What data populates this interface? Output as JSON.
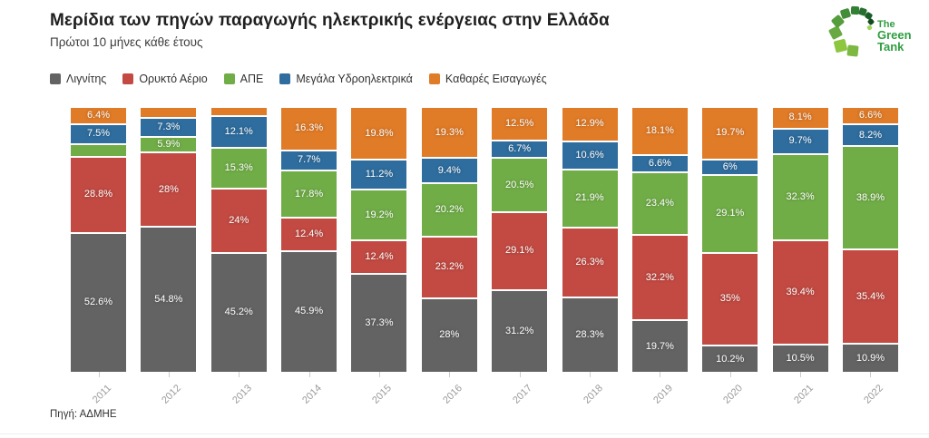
{
  "header": {
    "title": "Μερίδια των πηγών παραγωγής ηλεκτρικής ενέργειας στην Ελλάδα",
    "subtitle": "Πρώτοι 10 μήνες κάθε έτους"
  },
  "logo": {
    "line1": "The",
    "line2": "Green",
    "line3": "Tank",
    "text_color": "#2f9e41",
    "square_colors": [
      "#8dc63f",
      "#7cb842",
      "#68aa41",
      "#559c3d",
      "#428e38",
      "#337f33",
      "#25702e",
      "#1a5c26",
      "#124a1f",
      "#9ed65c"
    ]
  },
  "footer": {
    "source": "Πηγή: ΑΔΜΗΕ"
  },
  "chart_data": {
    "type": "bar",
    "stacked": true,
    "percent": true,
    "title": "Μερίδια των πηγών παραγωγής ηλεκτρικής ενέργειας στην Ελλάδα",
    "subtitle": "Πρώτοι 10 μήνες κάθε έτους",
    "xlabel": "",
    "ylabel": "",
    "ylim": [
      0,
      100
    ],
    "grid": false,
    "legend_position": "top",
    "categories": [
      "2011",
      "2012",
      "2013",
      "2014",
      "2015",
      "2016",
      "2017",
      "2018",
      "2019",
      "2020",
      "2021",
      "2022"
    ],
    "series": [
      {
        "name": "Λιγνίτης",
        "color": "#636363",
        "values": [
          52.6,
          54.8,
          45.2,
          45.9,
          37.3,
          28,
          31.2,
          28.3,
          19.7,
          10.2,
          10.5,
          10.9
        ],
        "labels": [
          "52.6%",
          "54.8%",
          "45.2%",
          "45.9%",
          "37.3%",
          "28%",
          "31.2%",
          "28.3%",
          "19.7%",
          "10.2%",
          "10.5%",
          "10.9%"
        ]
      },
      {
        "name": "Ορυκτό Αέριο",
        "color": "#c24a42",
        "values": [
          28.8,
          28,
          24,
          12.4,
          12.4,
          23.2,
          29.1,
          26.3,
          32.2,
          35,
          39.4,
          35.4
        ],
        "labels": [
          "28.8%",
          "28%",
          "24%",
          "12.4%",
          "12.4%",
          "23.2%",
          "29.1%",
          "26.3%",
          "32.2%",
          "35%",
          "39.4%",
          "35.4%"
        ]
      },
      {
        "name": "ΑΠΕ",
        "color": "#70ad47",
        "values": [
          4.7,
          5.9,
          15.3,
          17.8,
          19.2,
          20.2,
          20.5,
          21.9,
          23.4,
          29.1,
          32.3,
          38.9
        ],
        "labels": [
          "",
          "5.9%",
          "15.3%",
          "17.8%",
          "19.2%",
          "20.2%",
          "20.5%",
          "21.9%",
          "23.4%",
          "29.1%",
          "32.3%",
          "38.9%"
        ]
      },
      {
        "name": "Μεγάλα Υδροηλεκτρικά",
        "color": "#2e6d9e",
        "values": [
          7.5,
          7.3,
          12.1,
          7.7,
          11.2,
          9.4,
          6.7,
          10.6,
          6.6,
          6,
          9.7,
          8.2
        ],
        "labels": [
          "7.5%",
          "7.3%",
          "12.1%",
          "7.7%",
          "11.2%",
          "9.4%",
          "6.7%",
          "10.6%",
          "6.6%",
          "6%",
          "9.7%",
          "8.2%"
        ]
      },
      {
        "name": "Καθαρές Εισαγωγές",
        "color": "#e07b27",
        "values": [
          6.4,
          4,
          3.4,
          16.3,
          19.8,
          19.3,
          12.5,
          12.9,
          18.1,
          19.7,
          8.1,
          6.6
        ],
        "labels": [
          "6.4%",
          "",
          "",
          "16.3%",
          "19.8%",
          "19.3%",
          "12.5%",
          "12.9%",
          "18.1%",
          "19.7%",
          "8.1%",
          "6.6%"
        ]
      }
    ]
  }
}
